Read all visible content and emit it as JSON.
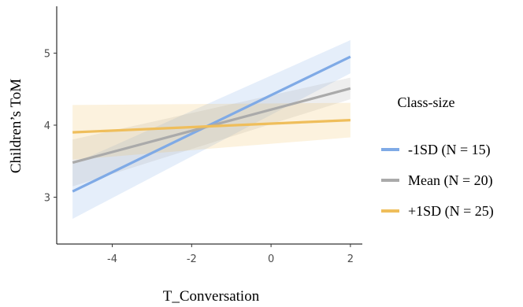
{
  "chart_data": {
    "type": "line",
    "xlabel": "T_Conversation",
    "ylabel": "Children’s ToM",
    "xlim": [
      -5.4,
      2.3
    ],
    "ylim": [
      2.35,
      5.65
    ],
    "xticks": [
      -4,
      -2,
      0,
      2
    ],
    "yticks": [
      3,
      4,
      5
    ],
    "grid": false,
    "legend": {
      "title": "Class-size",
      "position": "right"
    },
    "series": [
      {
        "name": "-1SD (N = 15)",
        "color": "#7faae6",
        "x": [
          -5,
          2
        ],
        "y": [
          3.08,
          4.95
        ],
        "ci_lower": [
          2.7,
          4.72
        ],
        "ci_upper": [
          3.46,
          5.18
        ]
      },
      {
        "name": "Mean (N = 20)",
        "color": "#aaaaaa",
        "x": [
          -5,
          2
        ],
        "y": [
          3.48,
          4.51
        ],
        "ci_lower": [
          3.15,
          4.36
        ],
        "ci_upper": [
          3.8,
          4.66
        ]
      },
      {
        "name": "+1SD (N = 25)",
        "color": "#efbe5b",
        "x": [
          -5,
          2
        ],
        "y": [
          3.9,
          4.07
        ],
        "ci_lower": [
          3.52,
          3.83
        ],
        "ci_upper": [
          4.28,
          4.31
        ]
      }
    ]
  }
}
